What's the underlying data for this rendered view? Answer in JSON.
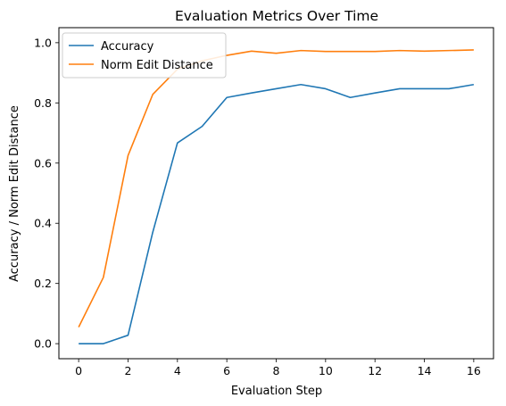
{
  "chart_data": {
    "type": "line",
    "title": "Evaluation Metrics Over Time",
    "xlabel": "Evaluation Step",
    "ylabel": "Accuracy / Norm Edit Distance",
    "xlim": [
      -0.8,
      16.8
    ],
    "ylim": [
      -0.05,
      1.05
    ],
    "xticks": [
      0,
      2,
      4,
      6,
      8,
      10,
      12,
      14,
      16
    ],
    "yticks": [
      0.0,
      0.2,
      0.4,
      0.6,
      0.8,
      1.0
    ],
    "ytick_labels": [
      "0.0",
      "0.2",
      "0.4",
      "0.6",
      "0.8",
      "1.0"
    ],
    "grid": false,
    "legend_position": "upper-left",
    "x": [
      0,
      1,
      2,
      3,
      4,
      5,
      6,
      7,
      8,
      9,
      10,
      11,
      12,
      13,
      14,
      15,
      16
    ],
    "series": [
      {
        "name": "Accuracy",
        "color": "#1f77b4",
        "values": [
          0.0,
          0.0,
          0.028,
          0.37,
          0.667,
          0.722,
          0.818,
          0.833,
          0.847,
          0.861,
          0.847,
          0.818,
          0.833,
          0.847,
          0.847,
          0.847,
          0.861
        ]
      },
      {
        "name": "Norm Edit Distance",
        "color": "#ff7f0e",
        "values": [
          0.055,
          0.22,
          0.625,
          0.828,
          0.912,
          0.94,
          0.958,
          0.972,
          0.965,
          0.974,
          0.971,
          0.971,
          0.971,
          0.974,
          0.972,
          0.974,
          0.976
        ]
      }
    ]
  }
}
